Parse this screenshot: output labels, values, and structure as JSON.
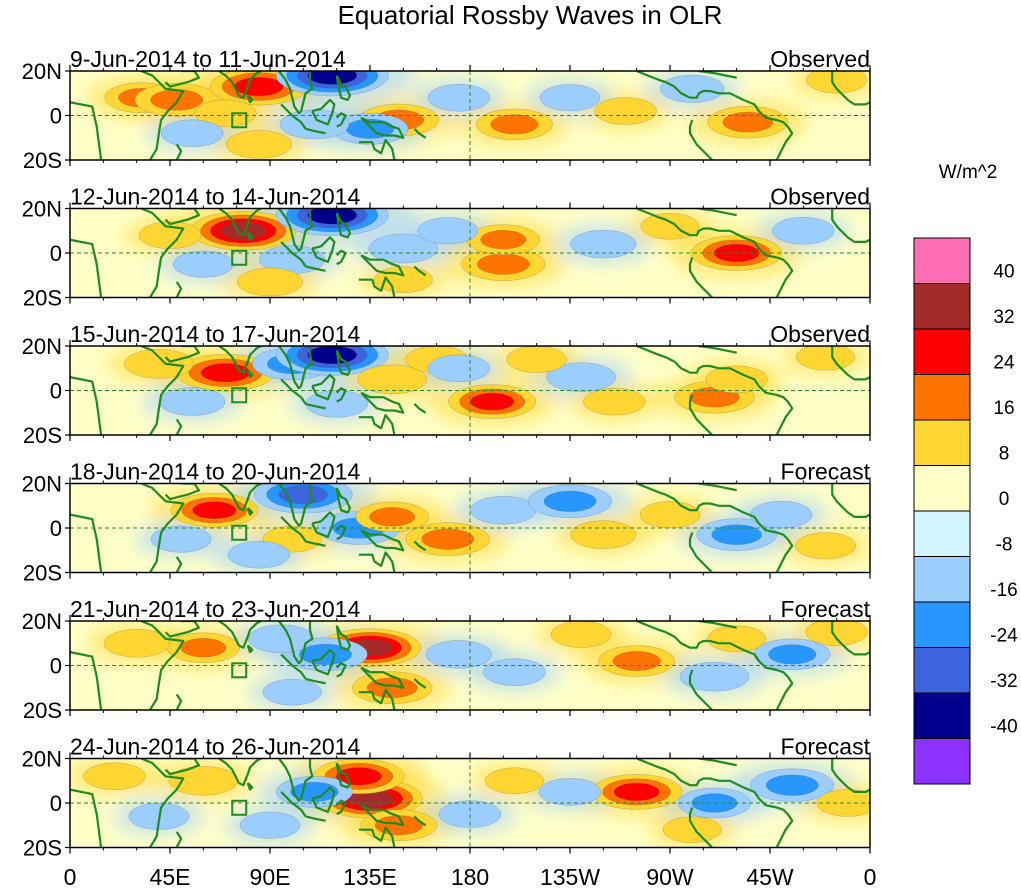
{
  "chart_data": {
    "type": "heatmap",
    "title": "Equatorial Rossby Waves in OLR",
    "colorbar": {
      "title": "W/m^2",
      "tick_labels": [
        "40",
        "32",
        "24",
        "16",
        "8",
        "0",
        "-8",
        "-16",
        "-24",
        "-32",
        "-40"
      ],
      "colors": [
        "#ff6eb4",
        "#a52a2a",
        "#ff0000",
        "#ff7300",
        "#ffd532",
        "#ffffc8",
        "#d2f5ff",
        "#9bcdff",
        "#2896ff",
        "#3c64dc",
        "#00008c",
        "#8c32ff"
      ],
      "levels_top_to_bottom": [
        ">40",
        "32 to 40",
        "24 to 32",
        "16 to 24",
        "8 to 16",
        "0 to 8",
        "-8 to 0",
        "-16 to -8",
        "-24 to -16",
        "-32 to -24",
        "-40 to -32",
        "<-40"
      ]
    },
    "x_axis": {
      "tick_labels": [
        "0",
        "45E",
        "90E",
        "135E",
        "180",
        "135W",
        "90W",
        "45W",
        "0"
      ],
      "ticks_lon": [
        0,
        45,
        90,
        135,
        180,
        225,
        270,
        315,
        360
      ],
      "xlim": [
        0,
        360
      ]
    },
    "y_axis": {
      "tick_labels": [
        "20N",
        "0",
        "20S"
      ],
      "ticks_lat": [
        20,
        0,
        -20
      ],
      "ylim": [
        -20,
        20
      ]
    },
    "panels": [
      {
        "date_range": "9-Jun-2014 to 11-Jun-2014",
        "status": "Observed",
        "anomalies": [
          {
            "lon": 32,
            "lat": 8,
            "value": 16
          },
          {
            "lon": 48,
            "lat": 7,
            "value": 22
          },
          {
            "lon": 85,
            "lat": 13,
            "value": 30
          },
          {
            "lon": 70,
            "lat": 1,
            "value": 10
          },
          {
            "lon": 118,
            "lat": 18,
            "value": -38
          },
          {
            "lon": 148,
            "lat": -2,
            "value": 20
          },
          {
            "lon": 135,
            "lat": -6,
            "value": -18
          },
          {
            "lon": 200,
            "lat": -4,
            "value": 18
          },
          {
            "lon": 250,
            "lat": 2,
            "value": 10
          },
          {
            "lon": 305,
            "lat": -3,
            "value": 20
          },
          {
            "lon": 345,
            "lat": 16,
            "value": 9
          },
          {
            "lon": 110,
            "lat": -4,
            "value": -14
          },
          {
            "lon": 175,
            "lat": 8,
            "value": -10
          },
          {
            "lon": 225,
            "lat": 8,
            "value": -9
          },
          {
            "lon": 85,
            "lat": -13,
            "value": 12
          },
          {
            "lon": 55,
            "lat": -8,
            "value": -10
          },
          {
            "lon": 280,
            "lat": 12,
            "value": -11
          }
        ]
      },
      {
        "date_range": "12-Jun-2014 to 14-Jun-2014",
        "status": "Observed",
        "anomalies": [
          {
            "lon": 78,
            "lat": 10,
            "value": 34
          },
          {
            "lon": 45,
            "lat": 8,
            "value": 10
          },
          {
            "lon": 118,
            "lat": 17,
            "value": -38
          },
          {
            "lon": 100,
            "lat": -3,
            "value": -12
          },
          {
            "lon": 150,
            "lat": 2,
            "value": -14
          },
          {
            "lon": 195,
            "lat": -5,
            "value": 22
          },
          {
            "lon": 195,
            "lat": 6,
            "value": 16
          },
          {
            "lon": 240,
            "lat": 4,
            "value": -12
          },
          {
            "lon": 300,
            "lat": 0,
            "value": 26
          },
          {
            "lon": 330,
            "lat": 10,
            "value": -10
          },
          {
            "lon": 90,
            "lat": -13,
            "value": 12
          },
          {
            "lon": 150,
            "lat": -12,
            "value": 8
          },
          {
            "lon": 170,
            "lat": 10,
            "value": -9
          },
          {
            "lon": 60,
            "lat": -5,
            "value": -9
          },
          {
            "lon": 270,
            "lat": 12,
            "value": 8
          }
        ]
      },
      {
        "date_range": "15-Jun-2014 to 17-Jun-2014",
        "status": "Observed",
        "anomalies": [
          {
            "lon": 70,
            "lat": 8,
            "value": 30
          },
          {
            "lon": 40,
            "lat": 12,
            "value": 14
          },
          {
            "lon": 100,
            "lat": 12,
            "value": -20
          },
          {
            "lon": 118,
            "lat": 16,
            "value": -38
          },
          {
            "lon": 145,
            "lat": 5,
            "value": 14
          },
          {
            "lon": 165,
            "lat": 14,
            "value": 10
          },
          {
            "lon": 190,
            "lat": -5,
            "value": 24
          },
          {
            "lon": 230,
            "lat": 6,
            "value": -14
          },
          {
            "lon": 245,
            "lat": -5,
            "value": 10
          },
          {
            "lon": 290,
            "lat": -3,
            "value": 20
          },
          {
            "lon": 300,
            "lat": 5,
            "value": 10
          },
          {
            "lon": 55,
            "lat": -5,
            "value": -12
          },
          {
            "lon": 120,
            "lat": -6,
            "value": -10
          },
          {
            "lon": 175,
            "lat": 10,
            "value": -10
          },
          {
            "lon": 340,
            "lat": 15,
            "value": 8
          },
          {
            "lon": 210,
            "lat": 14,
            "value": 9
          }
        ]
      },
      {
        "date_range": "18-Jun-2014 to 20-Jun-2014",
        "status": "Forecast",
        "anomalies": [
          {
            "lon": 65,
            "lat": 8,
            "value": 24
          },
          {
            "lon": 105,
            "lat": 15,
            "value": -30
          },
          {
            "lon": 130,
            "lat": 0,
            "value": -22
          },
          {
            "lon": 145,
            "lat": 5,
            "value": 16
          },
          {
            "lon": 170,
            "lat": -5,
            "value": 22
          },
          {
            "lon": 195,
            "lat": 8,
            "value": -12
          },
          {
            "lon": 225,
            "lat": 12,
            "value": -22
          },
          {
            "lon": 240,
            "lat": -3,
            "value": 12
          },
          {
            "lon": 300,
            "lat": -3,
            "value": -20
          },
          {
            "lon": 320,
            "lat": 6,
            "value": -10
          },
          {
            "lon": 100,
            "lat": -5,
            "value": 8
          },
          {
            "lon": 50,
            "lat": -5,
            "value": -9
          },
          {
            "lon": 85,
            "lat": -12,
            "value": -10
          },
          {
            "lon": 270,
            "lat": 6,
            "value": 9
          },
          {
            "lon": 340,
            "lat": -8,
            "value": 9
          }
        ]
      },
      {
        "date_range": "21-Jun-2014 to 23-Jun-2014",
        "status": "Forecast",
        "anomalies": [
          {
            "lon": 135,
            "lat": 8,
            "value": 32
          },
          {
            "lon": 145,
            "lat": -10,
            "value": 20
          },
          {
            "lon": 115,
            "lat": 5,
            "value": -22
          },
          {
            "lon": 60,
            "lat": 8,
            "value": 16
          },
          {
            "lon": 30,
            "lat": 10,
            "value": 12
          },
          {
            "lon": 95,
            "lat": 12,
            "value": -12
          },
          {
            "lon": 175,
            "lat": 5,
            "value": -12
          },
          {
            "lon": 200,
            "lat": -3,
            "value": -10
          },
          {
            "lon": 255,
            "lat": 2,
            "value": 18
          },
          {
            "lon": 290,
            "lat": -5,
            "value": -14
          },
          {
            "lon": 325,
            "lat": 5,
            "value": -18
          },
          {
            "lon": 230,
            "lat": 14,
            "value": 9
          },
          {
            "lon": 345,
            "lat": 15,
            "value": 10
          },
          {
            "lon": 100,
            "lat": -12,
            "value": -8
          },
          {
            "lon": 300,
            "lat": 12,
            "value": 8
          }
        ]
      },
      {
        "date_range": "24-Jun-2014 to 26-Jun-2014",
        "status": "Forecast",
        "anomalies": [
          {
            "lon": 135,
            "lat": 2,
            "value": 34
          },
          {
            "lon": 130,
            "lat": 12,
            "value": 26
          },
          {
            "lon": 148,
            "lat": -10,
            "value": 18
          },
          {
            "lon": 110,
            "lat": 5,
            "value": -18
          },
          {
            "lon": 60,
            "lat": 10,
            "value": 14
          },
          {
            "lon": 20,
            "lat": 12,
            "value": 10
          },
          {
            "lon": 255,
            "lat": 5,
            "value": 26
          },
          {
            "lon": 225,
            "lat": 5,
            "value": -10
          },
          {
            "lon": 290,
            "lat": 0,
            "value": -16
          },
          {
            "lon": 325,
            "lat": 8,
            "value": -22
          },
          {
            "lon": 350,
            "lat": 0,
            "value": 10
          },
          {
            "lon": 180,
            "lat": -5,
            "value": -10
          },
          {
            "lon": 200,
            "lat": 10,
            "value": 8
          },
          {
            "lon": 90,
            "lat": -10,
            "value": -9
          },
          {
            "lon": 40,
            "lat": -6,
            "value": -9
          },
          {
            "lon": 280,
            "lat": -12,
            "value": 8
          }
        ]
      }
    ]
  }
}
